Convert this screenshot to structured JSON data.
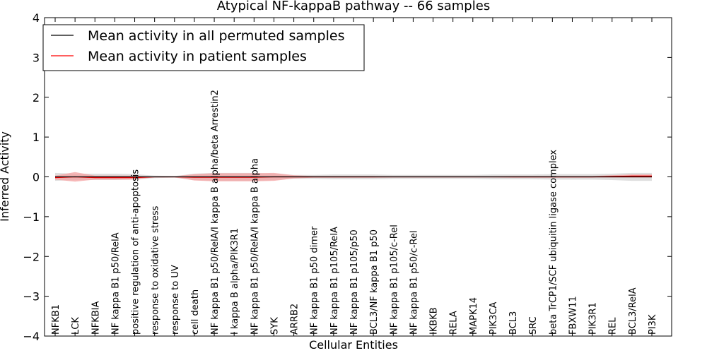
{
  "chart_data": {
    "type": "line",
    "title": "Atypical NF-kappaB pathway -- 66 samples",
    "xlabel": "Cellular Entities",
    "ylabel": "Inferred Activity",
    "ylim": [
      -4,
      4
    ],
    "yticks": [
      -4,
      -3,
      -2,
      -1,
      0,
      1,
      2,
      3,
      4
    ],
    "ytick_labels": [
      "−4",
      "−3",
      "−2",
      "−1",
      "0",
      "1",
      "2",
      "3",
      "4"
    ],
    "grid": false,
    "legend_position": "top-left",
    "categories": [
      "NFKB1",
      "LCK",
      "NFKBIA",
      "NF kappa B1 p50/RelA",
      "positive regulation of anti-apoptosis",
      "response to oxidative stress",
      "response to UV",
      "cell death",
      "NF kappa B1 p50/RelA/I kappa B alpha/beta Arrestin2",
      "I kappa B alpha/PIK3R1",
      "NF kappa B1 p50/RelA/I kappa B alpha",
      "SYK",
      "ARRB2",
      "NF kappa B1 p50 dimer",
      "NF kappa B1 p105/RelA",
      "NF kappa B1 p105/p50",
      "BCL3/NF kappa B1 p50",
      "NF kappa B1 p105/c-Rel",
      "NF kappa B1 p50/c-Rel",
      "IKBKB",
      "RELA",
      "MAPK14",
      "PIK3CA",
      "BCL3",
      "SRC",
      "beta TrCP1/SCF ubiquitin ligase complex",
      "FBXW11",
      "PIK3R1",
      "REL",
      "BCL3/RelA",
      "PI3K"
    ],
    "series": [
      {
        "name": "Mean activity in all permuted samples",
        "color": "#000000",
        "band_color": "#c8c8c8",
        "values": [
          0,
          0,
          0,
          0,
          0,
          0,
          0,
          0,
          0,
          0,
          0,
          0,
          0,
          0,
          0,
          0,
          0,
          0,
          0,
          0,
          0,
          0,
          0,
          0,
          0,
          0,
          0,
          0,
          0,
          0,
          0
        ],
        "band_halfwidth": [
          0.1,
          0.08,
          0.08,
          0.08,
          0.07,
          0.03,
          0.02,
          0.08,
          0.1,
          0.1,
          0.1,
          0.08,
          0.05,
          0.05,
          0.06,
          0.06,
          0.06,
          0.05,
          0.05,
          0.05,
          0.05,
          0.05,
          0.06,
          0.06,
          0.06,
          0.07,
          0.07,
          0.07,
          0.08,
          0.1,
          0.1
        ]
      },
      {
        "name": "Mean activity in patient samples",
        "color": "#ff0000",
        "band_color": "#f4a0a0",
        "values": [
          -0.02,
          0,
          -0.02,
          -0.02,
          -0.02,
          0,
          0,
          -0.01,
          -0.01,
          -0.01,
          -0.01,
          0,
          0,
          0,
          0,
          0,
          0,
          0,
          0,
          0,
          0,
          0,
          0,
          0,
          0,
          0,
          0,
          0,
          0.01,
          0.02,
          0.02
        ],
        "band_halfwidth": [
          0.05,
          0.12,
          0.05,
          0.05,
          0.05,
          0.01,
          0.01,
          0.08,
          0.1,
          0.1,
          0.1,
          0.1,
          0.04,
          0.02,
          0.02,
          0.02,
          0.02,
          0.01,
          0.01,
          0.01,
          0.01,
          0.01,
          0.01,
          0.02,
          0.02,
          0.02,
          0.02,
          0.02,
          0.03,
          0.04,
          0.04
        ]
      }
    ]
  }
}
